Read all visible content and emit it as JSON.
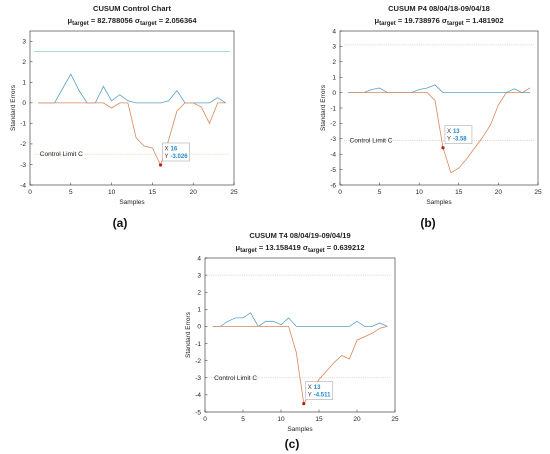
{
  "chart_data": [
    {
      "type": "line",
      "panel_label": "(a)",
      "title": "CUSUM Control Chart",
      "subtitle_parts": {
        "mu": "μ",
        "mu_sub": "target",
        "mu_val": " = 82.788056 ",
        "sigma": "σ",
        "sigma_sub": "target",
        "sigma_val": " = 2.056364"
      },
      "xlabel": "Samples",
      "ylabel": "Standard Errors",
      "xlim": [
        0,
        25
      ],
      "ylim": [
        -4,
        3.5
      ],
      "xticks": [
        0,
        5,
        10,
        15,
        20,
        25
      ],
      "yticks": [
        -4,
        -3,
        -2,
        -1,
        0,
        1,
        2,
        3
      ],
      "control_limits": [
        2.5,
        -2.5
      ],
      "control_limit_label": "Control Limit C",
      "series": [
        {
          "x": [
            1,
            2,
            3,
            4,
            5,
            6,
            7,
            8,
            9,
            10,
            11,
            12,
            13,
            14,
            15,
            16,
            17,
            18,
            19,
            20,
            21,
            22,
            23,
            24
          ],
          "y": [
            0,
            0,
            0,
            0.7,
            1.4,
            0.6,
            0,
            0,
            0.8,
            0.1,
            0.4,
            0.1,
            0,
            0,
            0,
            0,
            0.1,
            0.6,
            0,
            0,
            0,
            0,
            0.25,
            0
          ]
        },
        {
          "x": [
            1,
            2,
            3,
            4,
            5,
            6,
            7,
            8,
            9,
            10,
            11,
            12,
            13,
            14,
            15,
            16,
            17,
            18,
            19,
            20,
            21,
            22,
            23,
            24
          ],
          "y": [
            0,
            0,
            0,
            0,
            0,
            0,
            0,
            0,
            0,
            -0.25,
            0,
            0,
            -1.7,
            -2.1,
            -2.2,
            -3.03,
            -1.8,
            -0.4,
            0,
            0,
            -0.2,
            -1.0,
            0,
            0
          ]
        }
      ],
      "marker": {
        "x": 16,
        "y": -3.026
      },
      "tooltip": {
        "x_label": "X",
        "x_value": "16",
        "y_label": "Y",
        "y_value": "-3.026"
      },
      "colors": {
        "series1": "#5B9EC9",
        "series2": "#D9875A",
        "limit": "#E7C7B8",
        "marker": "#B22222",
        "tooltip_value": "#1E88C9"
      }
    },
    {
      "type": "line",
      "panel_label": "(b)",
      "title": "CUSUM P4 08/04/18-09/04/18",
      "subtitle_parts": {
        "mu": "μ",
        "mu_sub": "target",
        "mu_val": " = 19.738976 ",
        "sigma": "σ",
        "sigma_sub": "target",
        "sigma_val": " = 1.481902"
      },
      "xlabel": "Samples",
      "ylabel": "Standard Errors",
      "xlim": [
        0,
        25
      ],
      "ylim": [
        -6,
        4
      ],
      "xticks": [
        0,
        5,
        10,
        15,
        20,
        25
      ],
      "yticks": [
        -6,
        -5,
        -4,
        -3,
        -2,
        -1,
        0,
        1,
        2,
        3,
        4
      ],
      "control_limits": [
        3.1,
        -3.1
      ],
      "control_limit_label": "Control Limit C",
      "series": [
        {
          "x": [
            1,
            2,
            3,
            4,
            5,
            6,
            7,
            8,
            9,
            10,
            11,
            12,
            13,
            14,
            15,
            16,
            17,
            18,
            19,
            20,
            21,
            22,
            23,
            24
          ],
          "y": [
            0,
            0,
            0,
            0.2,
            0.3,
            0,
            0,
            0,
            0,
            0.2,
            0.3,
            0.5,
            0,
            0,
            0,
            0,
            0,
            0,
            0,
            0,
            0,
            0.25,
            0,
            0
          ]
        },
        {
          "x": [
            1,
            2,
            3,
            4,
            5,
            6,
            7,
            8,
            9,
            10,
            11,
            12,
            13,
            14,
            15,
            16,
            17,
            18,
            19,
            20,
            21,
            22,
            23,
            24
          ],
          "y": [
            0,
            0,
            0,
            0,
            0,
            0,
            0,
            0,
            0,
            0,
            0,
            -0.5,
            -3.58,
            -5.2,
            -4.9,
            -4.3,
            -3.6,
            -2.9,
            -2.1,
            -0.8,
            0,
            0,
            0,
            0.3
          ]
        }
      ],
      "marker": {
        "x": 13,
        "y": -3.58
      },
      "tooltip": {
        "x_label": "X",
        "x_value": "13",
        "y_label": "Y",
        "y_value": "-3.58"
      },
      "colors": {
        "series1": "#5B9EC9",
        "series2": "#D9875A",
        "limit": "#E7C7B8",
        "marker": "#B22222",
        "tooltip_value": "#1E88C9"
      }
    },
    {
      "type": "line",
      "panel_label": "(c)",
      "title": "CUSUM T4 08/04/19-09/04/19",
      "subtitle_parts": {
        "mu": "μ",
        "mu_sub": "target",
        "mu_val": " = 13.158419 ",
        "sigma": "σ",
        "sigma_sub": "target",
        "sigma_val": " = 0.639212"
      },
      "xlabel": "Samples",
      "ylabel": "Standard Errors",
      "xlim": [
        0,
        25
      ],
      "ylim": [
        -5,
        4
      ],
      "xticks": [
        0,
        5,
        10,
        15,
        20,
        25
      ],
      "yticks": [
        -5,
        -4,
        -3,
        -2,
        -1,
        0,
        1,
        2,
        3,
        4
      ],
      "control_limits": [
        3.0,
        -3.0
      ],
      "control_limit_label": "Control Limit C",
      "series": [
        {
          "x": [
            1,
            2,
            3,
            4,
            5,
            6,
            7,
            8,
            9,
            10,
            11,
            12,
            13,
            14,
            15,
            16,
            17,
            18,
            19,
            20,
            21,
            22,
            23,
            24
          ],
          "y": [
            0,
            0,
            0.3,
            0.5,
            0.5,
            0.8,
            0,
            0.3,
            0.3,
            0.1,
            0.5,
            0,
            0,
            0,
            0,
            0,
            0,
            0,
            0,
            0.3,
            0,
            0,
            0.2,
            0
          ]
        },
        {
          "x": [
            1,
            2,
            3,
            4,
            5,
            6,
            7,
            8,
            9,
            10,
            11,
            12,
            13,
            14,
            15,
            16,
            17,
            18,
            19,
            20,
            21,
            22,
            23,
            24
          ],
          "y": [
            0,
            0,
            0,
            0,
            0,
            0,
            0,
            0,
            0,
            0,
            0,
            -1.5,
            -4.511,
            -3.8,
            -3.1,
            -2.6,
            -2.1,
            -1.7,
            -1.9,
            -0.8,
            -0.6,
            -0.4,
            -0.1,
            0
          ]
        }
      ],
      "marker": {
        "x": 13,
        "y": -4.511
      },
      "tooltip": {
        "x_label": "X",
        "x_value": "13",
        "y_label": "Y",
        "y_value": "-4.511"
      },
      "colors": {
        "series1": "#5B9EC9",
        "series2": "#D9875A",
        "limit": "#E7C7B8",
        "marker": "#B22222",
        "tooltip_value": "#1E88C9"
      }
    }
  ]
}
